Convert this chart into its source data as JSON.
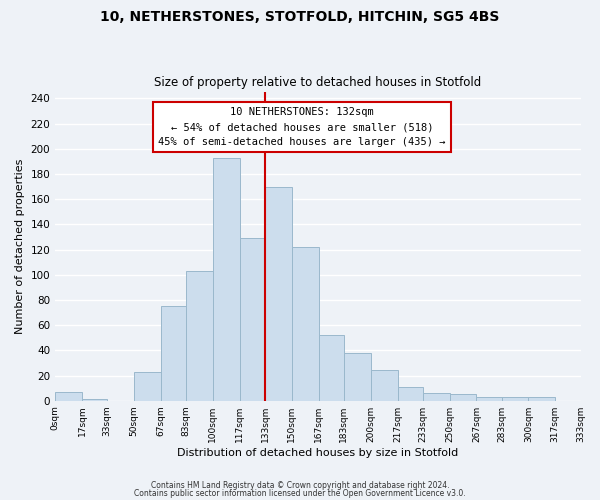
{
  "title": "10, NETHERSTONES, STOTFOLD, HITCHIN, SG5 4BS",
  "subtitle": "Size of property relative to detached houses in Stotfold",
  "xlabel": "Distribution of detached houses by size in Stotfold",
  "ylabel": "Number of detached properties",
  "bar_color": "#ccdded",
  "bar_edge_color": "#9ab8cc",
  "bin_edges": [
    0,
    17,
    33,
    50,
    67,
    83,
    100,
    117,
    133,
    150,
    167,
    183,
    200,
    217,
    233,
    250,
    267,
    283,
    300,
    317,
    333
  ],
  "bar_heights": [
    7,
    1,
    0,
    23,
    75,
    103,
    193,
    129,
    170,
    122,
    52,
    38,
    24,
    11,
    6,
    5,
    3,
    3,
    3,
    0
  ],
  "tick_labels": [
    "0sqm",
    "17sqm",
    "33sqm",
    "50sqm",
    "67sqm",
    "83sqm",
    "100sqm",
    "117sqm",
    "133sqm",
    "150sqm",
    "167sqm",
    "183sqm",
    "200sqm",
    "217sqm",
    "233sqm",
    "250sqm",
    "267sqm",
    "283sqm",
    "300sqm",
    "317sqm",
    "333sqm"
  ],
  "vline_x": 133,
  "vline_color": "#cc0000",
  "annotation_title": "10 NETHERSTONES: 132sqm",
  "annotation_line1": "← 54% of detached houses are smaller (518)",
  "annotation_line2": "45% of semi-detached houses are larger (435) →",
  "annotation_box_color": "#ffffff",
  "annotation_box_edge": "#cc0000",
  "ylim": [
    0,
    245
  ],
  "yticks": [
    0,
    20,
    40,
    60,
    80,
    100,
    120,
    140,
    160,
    180,
    200,
    220,
    240
  ],
  "footer1": "Contains HM Land Registry data © Crown copyright and database right 2024.",
  "footer2": "Contains public sector information licensed under the Open Government Licence v3.0.",
  "background_color": "#eef2f7",
  "grid_color": "#ffffff"
}
